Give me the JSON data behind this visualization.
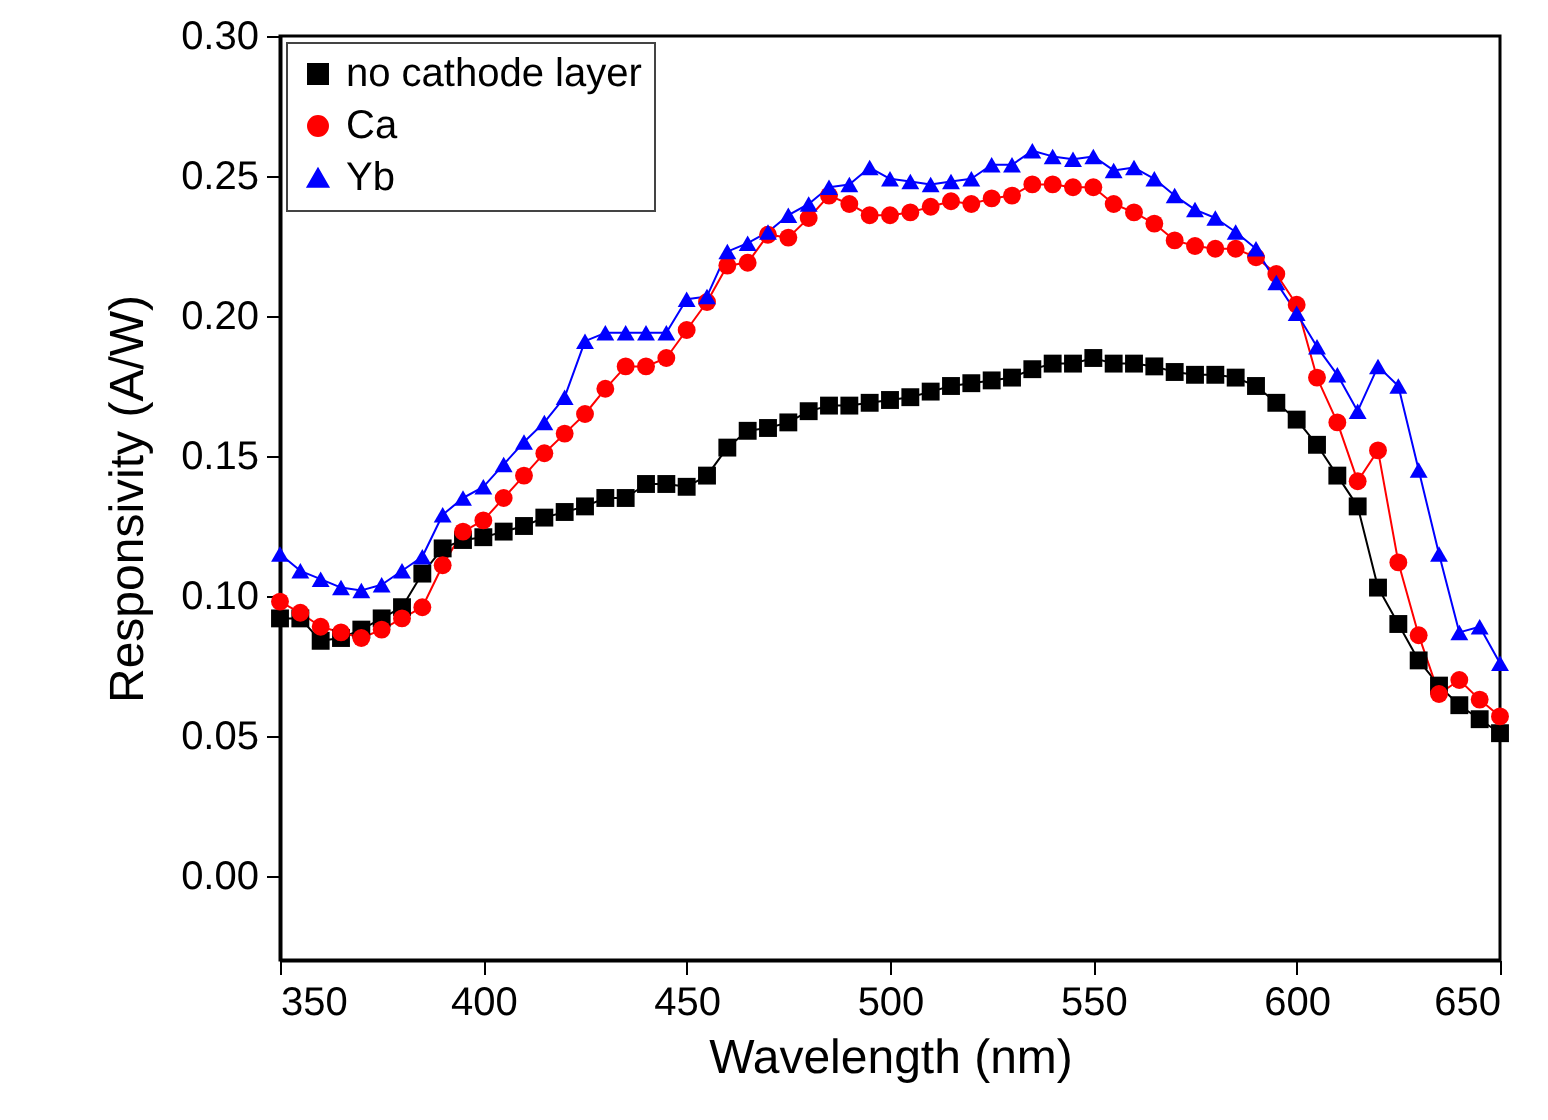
{
  "chart_data": {
    "type": "line",
    "xlabel": "Wavelength (nm)",
    "ylabel": "Responsivity (A/W)",
    "x": [
      350,
      355,
      360,
      365,
      370,
      375,
      380,
      385,
      390,
      395,
      400,
      405,
      410,
      415,
      420,
      425,
      430,
      435,
      440,
      445,
      450,
      455,
      460,
      465,
      470,
      475,
      480,
      485,
      490,
      495,
      500,
      505,
      510,
      515,
      520,
      525,
      530,
      535,
      540,
      545,
      550,
      555,
      560,
      565,
      570,
      575,
      580,
      585,
      590,
      595,
      600,
      605,
      610,
      615,
      620,
      625,
      630,
      635,
      640,
      645,
      650
    ],
    "series": [
      {
        "name": "no cathode layer",
        "color": "#000000",
        "marker": "square",
        "values": [
          0.092,
          0.092,
          0.084,
          0.085,
          0.088,
          0.092,
          0.096,
          0.108,
          0.117,
          0.12,
          0.121,
          0.123,
          0.125,
          0.128,
          0.13,
          0.132,
          0.135,
          0.135,
          0.14,
          0.14,
          0.139,
          0.143,
          0.153,
          0.159,
          0.16,
          0.162,
          0.166,
          0.168,
          0.168,
          0.169,
          0.17,
          0.171,
          0.173,
          0.175,
          0.176,
          0.177,
          0.178,
          0.181,
          0.183,
          0.183,
          0.185,
          0.183,
          0.183,
          0.182,
          0.18,
          0.179,
          0.179,
          0.178,
          0.175,
          0.169,
          0.163,
          0.154,
          0.143,
          0.132,
          0.103,
          0.09,
          0.077,
          0.068,
          0.061,
          0.056,
          0.051
        ]
      },
      {
        "name": "Ca",
        "color": "#ff0000",
        "marker": "circle",
        "values": [
          0.098,
          0.094,
          0.089,
          0.087,
          0.085,
          0.088,
          0.092,
          0.096,
          0.111,
          0.123,
          0.127,
          0.135,
          0.143,
          0.151,
          0.158,
          0.165,
          0.174,
          0.182,
          0.182,
          0.185,
          0.195,
          0.205,
          0.218,
          0.219,
          0.229,
          0.228,
          0.235,
          0.243,
          0.24,
          0.236,
          0.236,
          0.237,
          0.239,
          0.241,
          0.24,
          0.242,
          0.243,
          0.247,
          0.247,
          0.246,
          0.246,
          0.24,
          0.237,
          0.233,
          0.227,
          0.225,
          0.224,
          0.224,
          0.221,
          0.215,
          0.204,
          0.178,
          0.162,
          0.141,
          0.152,
          0.112,
          0.086,
          0.065,
          0.07,
          0.063,
          0.057
        ]
      },
      {
        "name": "Yb",
        "color": "#0000ff",
        "marker": "triangle",
        "values": [
          0.115,
          0.109,
          0.106,
          0.103,
          0.102,
          0.104,
          0.109,
          0.114,
          0.129,
          0.135,
          0.139,
          0.147,
          0.155,
          0.162,
          0.171,
          0.191,
          0.194,
          0.194,
          0.194,
          0.194,
          0.206,
          0.207,
          0.223,
          0.226,
          0.23,
          0.236,
          0.24,
          0.246,
          0.247,
          0.253,
          0.249,
          0.248,
          0.247,
          0.248,
          0.249,
          0.254,
          0.254,
          0.259,
          0.257,
          0.256,
          0.257,
          0.252,
          0.253,
          0.249,
          0.243,
          0.238,
          0.235,
          0.23,
          0.224,
          0.212,
          0.201,
          0.189,
          0.179,
          0.166,
          0.182,
          0.175,
          0.145,
          0.115,
          0.087,
          0.089,
          0.076
        ]
      }
    ],
    "xlim": [
      350,
      650
    ],
    "xticks": [
      350,
      400,
      450,
      500,
      550,
      600,
      650
    ],
    "ylim": [
      -0.03,
      0.3
    ],
    "yticks": [
      {
        "value": 0,
        "label": "0.00"
      },
      {
        "value": 0.05,
        "label": "0.05"
      },
      {
        "value": 0.1,
        "label": "0.10"
      },
      {
        "value": 0.15,
        "label": "0.15"
      },
      {
        "value": 0.2,
        "label": "0.20"
      },
      {
        "value": 0.25,
        "label": "0.25"
      },
      {
        "value": 0.3,
        "label": "0.30"
      }
    ],
    "legend": "top left",
    "grid": false
  }
}
